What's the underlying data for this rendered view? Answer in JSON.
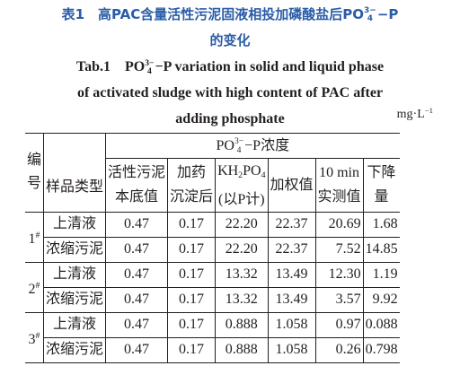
{
  "caption": {
    "cn": [
      [
        {
          "text": "表1　高PAC含量活性污泥固液相投加磷酸盐后PO",
          "sub": "4",
          "sup": "3−"
        },
        {
          "text": "−P"
        }
      ],
      [
        {
          "text": "的变化"
        }
      ]
    ],
    "en": [
      [
        {
          "text": "Tab.1　PO",
          "sub": "4",
          "sup": "3−"
        },
        {
          "text": "−P variation in solid and liquid phase"
        }
      ],
      [
        {
          "text": "of activated sludge with high content of PAC after"
        }
      ],
      [
        {
          "text": "adding phosphate"
        }
      ]
    ],
    "unit": [
      [
        {
          "text": "mg·L",
          "sup": "−1"
        }
      ]
    ]
  },
  "table": {
    "header": {
      "number": [
        [
          {
            "text": "编"
          }
        ],
        [
          {
            "text": "号"
          }
        ]
      ],
      "sample_type": [
        [
          {
            "text": "样品类型"
          }
        ]
      ],
      "group": [
        [
          {
            "text": "PO",
            "sub": "4",
            "sup": "3−"
          },
          {
            "text": "−P浓度"
          }
        ]
      ],
      "columns": [
        [
          [
            {
              "text": "活性污泥"
            }
          ],
          [
            {
              "text": "本底值"
            }
          ]
        ],
        [
          [
            {
              "text": "加药"
            }
          ],
          [
            {
              "text": "沉淀后"
            }
          ]
        ],
        [
          [
            {
              "text": "KH",
              "sub": "2"
            },
            {
              "text": "PO",
              "sub": "4"
            }
          ],
          [
            {
              "text": "(以P计)"
            }
          ]
        ],
        [
          [
            {
              "text": "加权值"
            }
          ]
        ],
        [
          [
            {
              "text": "10 min"
            }
          ],
          [
            {
              "text": "实测值"
            }
          ]
        ],
        [
          [
            {
              "text": "下降"
            }
          ],
          [
            {
              "text": "量"
            }
          ]
        ]
      ]
    },
    "groups": [
      {
        "id": [
          [
            {
              "text": "1",
              "sup": "#"
            }
          ]
        ],
        "rows": [
          {
            "type": "上清液",
            "values": [
              "0.47",
              "0.17",
              "22.20",
              "22.37",
              "20.69",
              "1.68"
            ]
          },
          {
            "type": "浓缩污泥",
            "values": [
              "0.47",
              "0.17",
              "22.20",
              "22.37",
              "7.52",
              "14.85"
            ]
          }
        ]
      },
      {
        "id": [
          [
            {
              "text": "2",
              "sup": "#"
            }
          ]
        ],
        "rows": [
          {
            "type": "上清液",
            "values": [
              "0.47",
              "0.17",
              "13.32",
              "13.49",
              "12.30",
              "1.19"
            ]
          },
          {
            "type": "浓缩污泥",
            "values": [
              "0.47",
              "0.17",
              "13.32",
              "13.49",
              "3.57",
              "9.92"
            ]
          }
        ]
      },
      {
        "id": [
          [
            {
              "text": "3",
              "sup": "#"
            }
          ]
        ],
        "rows": [
          {
            "type": "上清液",
            "values": [
              "0.47",
              "0.17",
              "0.888",
              "1.058",
              "0.97",
              "0.088"
            ]
          },
          {
            "type": "浓缩污泥",
            "values": [
              "0.47",
              "0.17",
              "0.888",
              "1.058",
              "0.26",
              "0.798"
            ]
          }
        ]
      }
    ]
  }
}
